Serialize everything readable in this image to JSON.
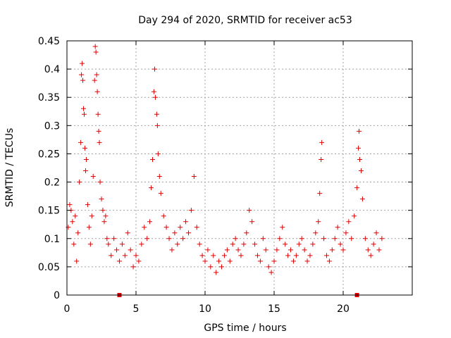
{
  "chart_data": {
    "type": "scatter",
    "title": "Day 294 of 2020, SRMTID for receiver ac53",
    "xlabel": "GPS time / hours",
    "ylabel": "SRMTID / TECUs",
    "xlim": [
      0,
      25
    ],
    "ylim": [
      0,
      0.45
    ],
    "x_ticks": [
      0,
      5,
      10,
      15,
      20
    ],
    "y_ticks": [
      0,
      0.05,
      0.1,
      0.15,
      0.2,
      0.25,
      0.3,
      0.35,
      0.4,
      0.45
    ],
    "x_tick_labels": [
      "0",
      "5",
      "10",
      "15",
      "20"
    ],
    "y_tick_labels": [
      "0",
      "0.05",
      "0.1",
      "0.15",
      "0.2",
      "0.25",
      "0.3",
      "0.35",
      "0.4",
      "0.45"
    ],
    "grid": true,
    "marker": "plus",
    "marker_color": "#e00000",
    "outliers_at_zero": [
      3.8,
      21.0
    ],
    "series": [
      {
        "name": "SRMTID",
        "points": [
          [
            0.1,
            0.12
          ],
          [
            0.2,
            0.16
          ],
          [
            0.3,
            0.15
          ],
          [
            0.4,
            0.13
          ],
          [
            0.5,
            0.09
          ],
          [
            0.6,
            0.14
          ],
          [
            0.7,
            0.06
          ],
          [
            0.8,
            0.11
          ],
          [
            0.9,
            0.2
          ],
          [
            1.0,
            0.27
          ],
          [
            1.05,
            0.39
          ],
          [
            1.1,
            0.41
          ],
          [
            1.15,
            0.38
          ],
          [
            1.2,
            0.33
          ],
          [
            1.25,
            0.32
          ],
          [
            1.3,
            0.26
          ],
          [
            1.35,
            0.22
          ],
          [
            1.4,
            0.24
          ],
          [
            1.5,
            0.16
          ],
          [
            1.6,
            0.12
          ],
          [
            1.7,
            0.09
          ],
          [
            1.8,
            0.14
          ],
          [
            1.9,
            0.21
          ],
          [
            2.0,
            0.38
          ],
          [
            2.05,
            0.44
          ],
          [
            2.1,
            0.43
          ],
          [
            2.15,
            0.39
          ],
          [
            2.2,
            0.36
          ],
          [
            2.25,
            0.32
          ],
          [
            2.3,
            0.29
          ],
          [
            2.35,
            0.27
          ],
          [
            2.4,
            0.2
          ],
          [
            2.5,
            0.17
          ],
          [
            2.6,
            0.15
          ],
          [
            2.7,
            0.13
          ],
          [
            2.8,
            0.14
          ],
          [
            2.9,
            0.1
          ],
          [
            3.0,
            0.09
          ],
          [
            3.2,
            0.07
          ],
          [
            3.4,
            0.1
          ],
          [
            3.6,
            0.08
          ],
          [
            3.8,
            0.06
          ],
          [
            4.0,
            0.09
          ],
          [
            4.2,
            0.07
          ],
          [
            4.4,
            0.11
          ],
          [
            4.6,
            0.08
          ],
          [
            4.8,
            0.05
          ],
          [
            5.0,
            0.07
          ],
          [
            5.2,
            0.06
          ],
          [
            5.4,
            0.09
          ],
          [
            5.6,
            0.12
          ],
          [
            5.8,
            0.1
          ],
          [
            6.0,
            0.13
          ],
          [
            6.1,
            0.19
          ],
          [
            6.2,
            0.24
          ],
          [
            6.3,
            0.36
          ],
          [
            6.35,
            0.4
          ],
          [
            6.4,
            0.35
          ],
          [
            6.5,
            0.32
          ],
          [
            6.55,
            0.3
          ],
          [
            6.6,
            0.25
          ],
          [
            6.7,
            0.21
          ],
          [
            6.8,
            0.18
          ],
          [
            7.0,
            0.14
          ],
          [
            7.2,
            0.12
          ],
          [
            7.4,
            0.1
          ],
          [
            7.6,
            0.08
          ],
          [
            7.8,
            0.11
          ],
          [
            8.0,
            0.09
          ],
          [
            8.2,
            0.12
          ],
          [
            8.4,
            0.1
          ],
          [
            8.6,
            0.13
          ],
          [
            8.8,
            0.11
          ],
          [
            9.0,
            0.15
          ],
          [
            9.2,
            0.21
          ],
          [
            9.4,
            0.12
          ],
          [
            9.6,
            0.09
          ],
          [
            9.8,
            0.07
          ],
          [
            10.0,
            0.06
          ],
          [
            10.2,
            0.08
          ],
          [
            10.4,
            0.05
          ],
          [
            10.6,
            0.07
          ],
          [
            10.8,
            0.04
          ],
          [
            11.0,
            0.06
          ],
          [
            11.2,
            0.05
          ],
          [
            11.4,
            0.07
          ],
          [
            11.6,
            0.08
          ],
          [
            11.8,
            0.06
          ],
          [
            12.0,
            0.09
          ],
          [
            12.2,
            0.1
          ],
          [
            12.4,
            0.08
          ],
          [
            12.6,
            0.07
          ],
          [
            12.8,
            0.09
          ],
          [
            13.0,
            0.11
          ],
          [
            13.2,
            0.15
          ],
          [
            13.4,
            0.13
          ],
          [
            13.6,
            0.09
          ],
          [
            13.8,
            0.07
          ],
          [
            14.0,
            0.06
          ],
          [
            14.2,
            0.1
          ],
          [
            14.4,
            0.08
          ],
          [
            14.6,
            0.05
          ],
          [
            14.8,
            0.04
          ],
          [
            15.0,
            0.06
          ],
          [
            15.2,
            0.08
          ],
          [
            15.4,
            0.1
          ],
          [
            15.6,
            0.12
          ],
          [
            15.8,
            0.09
          ],
          [
            16.0,
            0.07
          ],
          [
            16.2,
            0.08
          ],
          [
            16.4,
            0.06
          ],
          [
            16.6,
            0.07
          ],
          [
            16.8,
            0.09
          ],
          [
            17.0,
            0.1
          ],
          [
            17.2,
            0.08
          ],
          [
            17.4,
            0.06
          ],
          [
            17.6,
            0.07
          ],
          [
            17.8,
            0.09
          ],
          [
            18.0,
            0.11
          ],
          [
            18.2,
            0.13
          ],
          [
            18.3,
            0.18
          ],
          [
            18.4,
            0.24
          ],
          [
            18.45,
            0.27
          ],
          [
            18.6,
            0.1
          ],
          [
            18.8,
            0.07
          ],
          [
            19.0,
            0.06
          ],
          [
            19.2,
            0.08
          ],
          [
            19.4,
            0.1
          ],
          [
            19.6,
            0.12
          ],
          [
            19.8,
            0.09
          ],
          [
            20.0,
            0.08
          ],
          [
            20.2,
            0.11
          ],
          [
            20.4,
            0.13
          ],
          [
            20.6,
            0.1
          ],
          [
            20.8,
            0.14
          ],
          [
            21.0,
            0.19
          ],
          [
            21.1,
            0.26
          ],
          [
            21.15,
            0.29
          ],
          [
            21.2,
            0.24
          ],
          [
            21.3,
            0.22
          ],
          [
            21.4,
            0.17
          ],
          [
            21.6,
            0.1
          ],
          [
            21.8,
            0.08
          ],
          [
            22.0,
            0.07
          ],
          [
            22.2,
            0.09
          ],
          [
            22.4,
            0.11
          ],
          [
            22.6,
            0.08
          ],
          [
            22.8,
            0.1
          ]
        ]
      }
    ]
  }
}
